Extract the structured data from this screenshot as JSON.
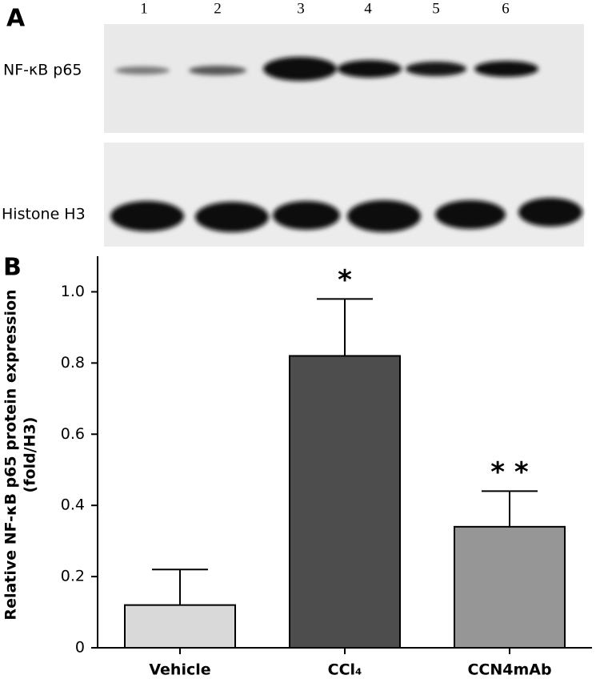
{
  "panel_a": {
    "label": "A",
    "lanes": [
      "1",
      "2",
      "3",
      "4",
      "5",
      "6"
    ],
    "rows": [
      "NF-κB p65",
      "Histone H3"
    ]
  },
  "chart_data": {
    "type": "bar",
    "panel_label": "B",
    "y_label": [
      "Relative NF-κB p65 protein expression",
      "(fold/H3)"
    ],
    "categories": [
      "Vehicle",
      "CCl₄",
      "CCN4mAb"
    ],
    "values": [
      0.12,
      0.82,
      0.34
    ],
    "errors": [
      0.1,
      0.16,
      0.1
    ],
    "colors": [
      "#d9d9d9",
      "#4d4d4d",
      "#969696"
    ],
    "annotations": [
      null,
      "*",
      "* *"
    ],
    "ylim": [
      0,
      1.1
    ],
    "yticks": [
      0,
      0.2,
      0.4,
      0.6,
      0.8,
      {
        "value": 1,
        "label": "1.0"
      }
    ]
  }
}
